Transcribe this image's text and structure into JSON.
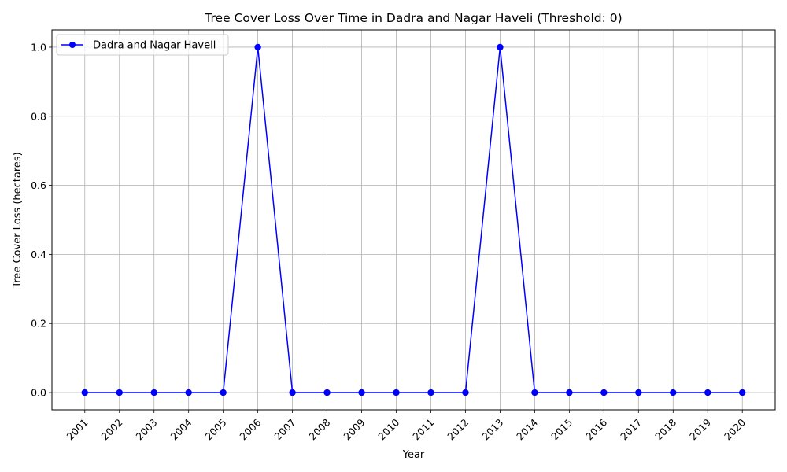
{
  "chart_data": {
    "type": "line",
    "title": "Tree Cover Loss Over Time in Dadra and Nagar Haveli (Threshold: 0)",
    "xlabel": "Year",
    "ylabel": "Tree Cover Loss (hectares)",
    "categories": [
      "2001",
      "2002",
      "2003",
      "2004",
      "2005",
      "2006",
      "2007",
      "2008",
      "2009",
      "2010",
      "2011",
      "2012",
      "2013",
      "2014",
      "2015",
      "2016",
      "2017",
      "2018",
      "2019",
      "2020"
    ],
    "series": [
      {
        "name": "Dadra and Nagar Haveli",
        "values": [
          0,
          0,
          0,
          0,
          0,
          1,
          0,
          0,
          0,
          0,
          0,
          0,
          1,
          0,
          0,
          0,
          0,
          0,
          0,
          0
        ],
        "color": "#0000ff",
        "marker": "circle"
      }
    ],
    "ylim": [
      -0.05,
      1.05
    ],
    "yticks": [
      0.0,
      0.2,
      0.4,
      0.6,
      0.8,
      1.0
    ],
    "ytick_labels": [
      "0.0",
      "0.2",
      "0.4",
      "0.6",
      "0.8",
      "1.0"
    ],
    "xtick_rotation": 45,
    "grid": true,
    "legend_position": "upper-left"
  }
}
